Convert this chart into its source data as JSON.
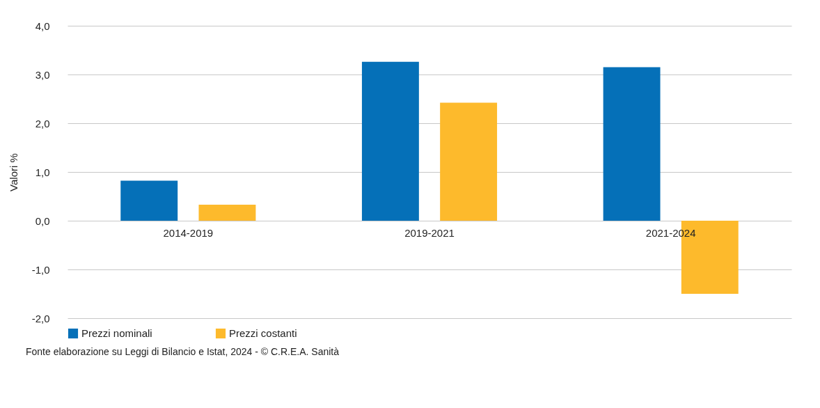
{
  "chart_data": {
    "type": "bar",
    "ylabel": "Valori %",
    "categories": [
      "2014-2019",
      "2019-2021",
      "2021-2024"
    ],
    "series": [
      {
        "name": "Prezzi nominali",
        "color": "#0570b8",
        "values": [
          0.82,
          3.26,
          3.15
        ]
      },
      {
        "name": "Prezzi costanti",
        "color": "#fdba2c",
        "values": [
          0.33,
          2.42,
          -1.5
        ]
      }
    ],
    "ylim": [
      -2,
      4
    ],
    "yticks": [
      {
        "value": -2,
        "label": "-2,0"
      },
      {
        "value": -1,
        "label": "-1,0"
      },
      {
        "value": 0,
        "label": "0,0"
      },
      {
        "value": 1,
        "label": "1,0"
      },
      {
        "value": 2,
        "label": "2,0"
      },
      {
        "value": 3,
        "label": "3,0"
      },
      {
        "value": 4,
        "label": "4,0"
      }
    ],
    "grid": "y",
    "legend": "bottom",
    "annotations": [
      "Fonte elaborazione su Leggi di Bilancio e Istat, 2024 - © C.R.E.A. Sanità"
    ]
  }
}
